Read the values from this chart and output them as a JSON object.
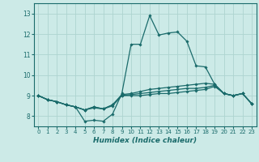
{
  "xlabel": "Humidex (Indice chaleur)",
  "bg_color": "#cceae7",
  "line_color": "#1a6b6b",
  "grid_color": "#aed4d0",
  "ylim": [
    7.5,
    13.5
  ],
  "xlim": [
    -0.5,
    23.5
  ],
  "yticks": [
    8,
    9,
    10,
    11,
    12,
    13
  ],
  "xticks": [
    0,
    1,
    2,
    3,
    4,
    5,
    6,
    7,
    8,
    9,
    10,
    11,
    12,
    13,
    14,
    15,
    16,
    17,
    18,
    19,
    20,
    21,
    22,
    23
  ],
  "series": [
    [
      9.0,
      8.8,
      8.7,
      8.55,
      8.45,
      7.75,
      7.8,
      7.75,
      8.1,
      9.1,
      11.5,
      11.5,
      12.9,
      11.95,
      12.05,
      12.1,
      11.65,
      10.45,
      10.4,
      9.55,
      9.1,
      9.0,
      9.1,
      8.6
    ],
    [
      9.0,
      8.8,
      8.7,
      8.55,
      8.45,
      8.3,
      8.45,
      8.35,
      8.55,
      9.05,
      9.1,
      9.2,
      9.3,
      9.35,
      9.4,
      9.45,
      9.5,
      9.55,
      9.6,
      9.55,
      9.1,
      9.0,
      9.1,
      8.6
    ],
    [
      9.0,
      8.8,
      8.7,
      8.55,
      8.45,
      8.3,
      8.45,
      8.35,
      8.55,
      9.0,
      9.05,
      9.1,
      9.15,
      9.2,
      9.25,
      9.3,
      9.35,
      9.35,
      9.4,
      9.5,
      9.1,
      9.0,
      9.1,
      8.6
    ],
    [
      9.0,
      8.8,
      8.7,
      8.55,
      8.45,
      8.3,
      8.4,
      8.35,
      8.5,
      9.0,
      9.0,
      9.0,
      9.05,
      9.1,
      9.1,
      9.15,
      9.2,
      9.25,
      9.3,
      9.45,
      9.1,
      9.0,
      9.1,
      8.6
    ]
  ]
}
